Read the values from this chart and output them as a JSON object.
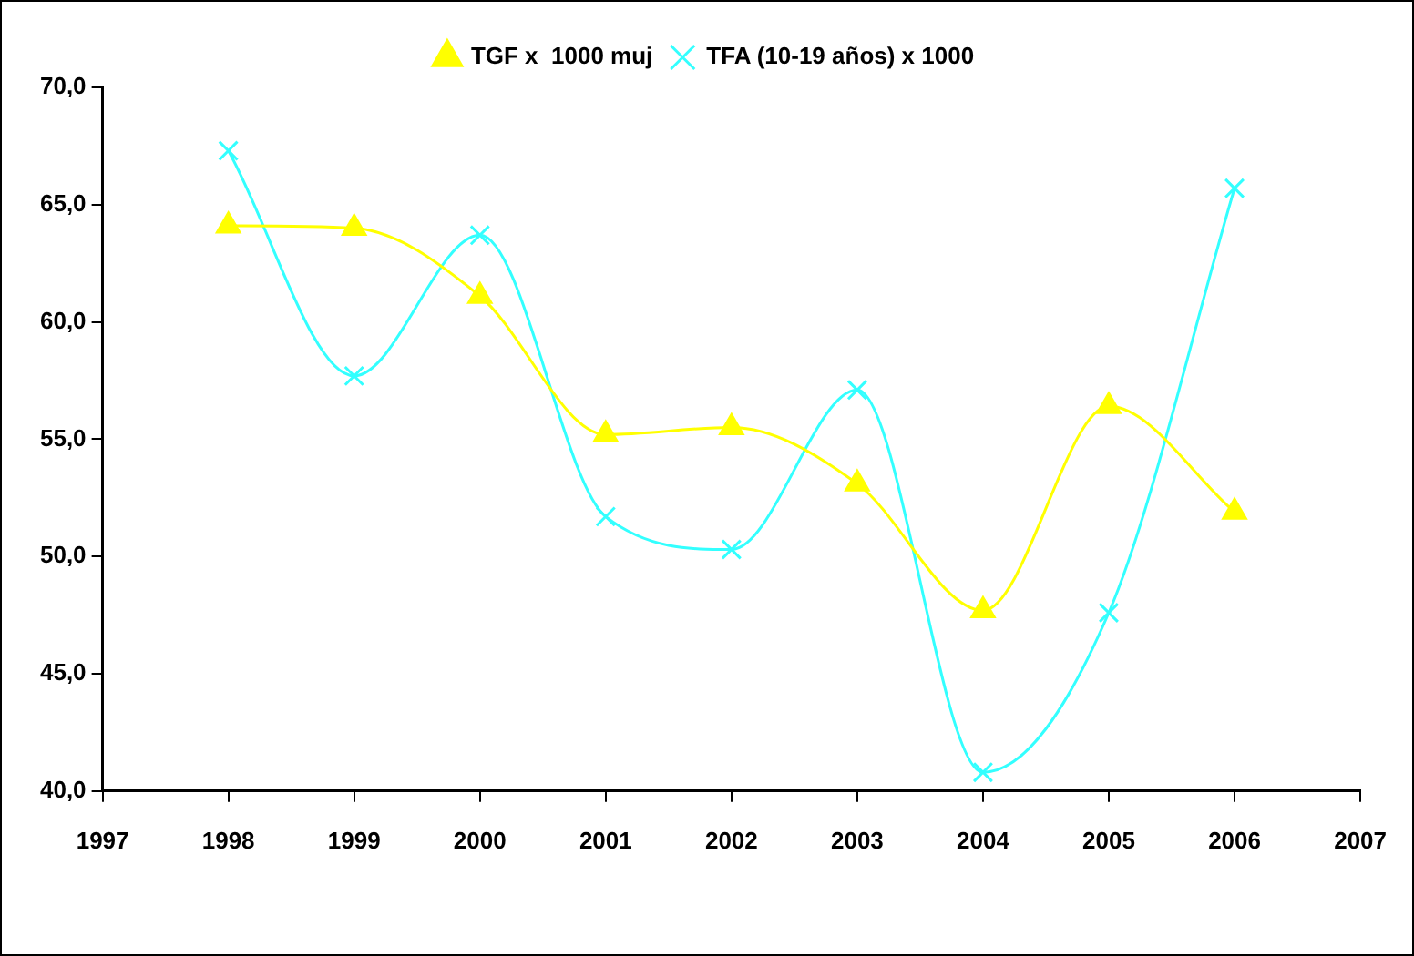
{
  "chart_data": {
    "type": "line",
    "x": [
      1998,
      1999,
      2000,
      2001,
      2002,
      2003,
      2004,
      2005,
      2006
    ],
    "series": [
      {
        "name": "TGF x  1000 muj",
        "color": "#ffff00",
        "marker": "triangle",
        "values": [
          64.1,
          64.0,
          61.1,
          55.2,
          55.5,
          53.1,
          47.7,
          56.4,
          51.9
        ]
      },
      {
        "name": "TFA (10-19 años) x 1000",
        "color": "#33ffff",
        "marker": "cross",
        "values": [
          67.3,
          57.7,
          63.7,
          51.7,
          50.3,
          57.1,
          40.8,
          47.6,
          65.7
        ]
      }
    ],
    "xlim": [
      1997,
      2007
    ],
    "xticks": [
      1997,
      1998,
      1999,
      2000,
      2001,
      2002,
      2003,
      2004,
      2005,
      2006,
      2007
    ],
    "ylim": [
      40,
      70
    ],
    "yticks": [
      {
        "value": 40,
        "label": "40,0"
      },
      {
        "value": 45,
        "label": "45,0"
      },
      {
        "value": 50,
        "label": "50,0"
      },
      {
        "value": 55,
        "label": "55,0"
      },
      {
        "value": 60,
        "label": "60,0"
      },
      {
        "value": 65,
        "label": "65,0"
      },
      {
        "value": 70,
        "label": "70,0"
      }
    ],
    "grid": false,
    "legend": "top"
  }
}
